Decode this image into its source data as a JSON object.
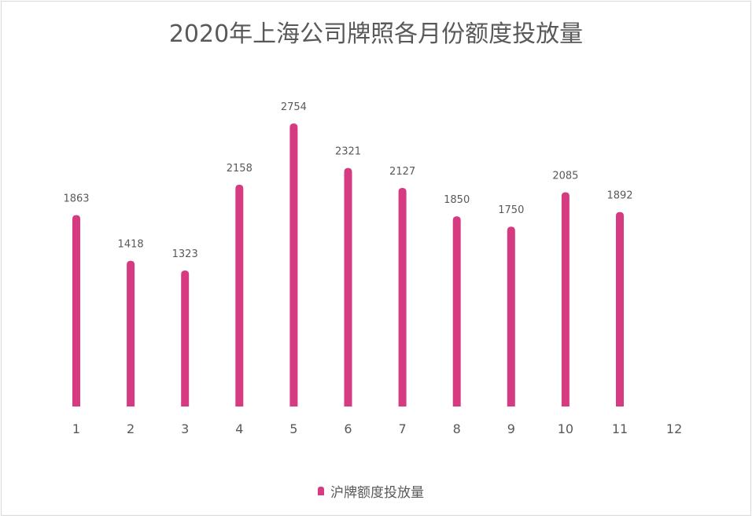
{
  "chart_data": {
    "type": "bar",
    "title": "2020年上海公司牌照各月份额度投放量",
    "xlabel": "",
    "ylabel": "",
    "categories": [
      "1",
      "2",
      "3",
      "4",
      "5",
      "6",
      "7",
      "8",
      "9",
      "10",
      "11",
      "12"
    ],
    "series": [
      {
        "name": "沪牌额度投放量",
        "color": "#d63a80",
        "values": [
          1863,
          1418,
          1323,
          2158,
          2754,
          2321,
          2127,
          1850,
          1750,
          2085,
          1892,
          null
        ]
      }
    ],
    "ylim": [
      0,
      2754
    ],
    "grid": false,
    "legend_position": "bottom"
  }
}
